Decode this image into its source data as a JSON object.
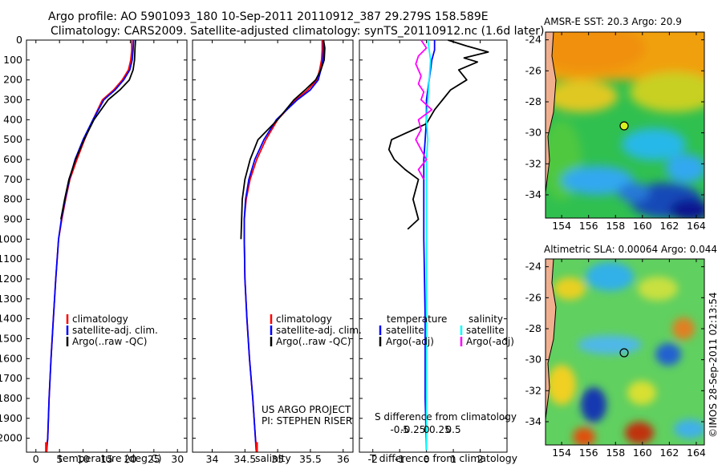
{
  "header": {
    "line1": "Argo profile: AO 5901093_180 10-Sep-2011 20110912_387 29.279S 158.589E",
    "line2": "Climatology: CARS2009. Satellite-adjusted climatology: synTS_20110912.nc (1.6d later)"
  },
  "depth_ticks": [
    "0",
    "100",
    "200",
    "300",
    "400",
    "500",
    "600",
    "700",
    "800",
    "900",
    "1000",
    "1100",
    "1200",
    "1300",
    "1400",
    "1500",
    "1600",
    "1700",
    "1800",
    "1900",
    "2000"
  ],
  "chart_data": [
    {
      "type": "line",
      "name": "temperature",
      "xlabel": "temperature (deg C)",
      "ylabel": "",
      "xlim": [
        -2,
        32
      ],
      "ylim": [
        2070,
        0
      ],
      "xticks": [
        "0",
        "5",
        "10",
        "15",
        "20",
        "25",
        "30"
      ],
      "series": [
        {
          "name": "climatology",
          "color": "#ff0000",
          "x": [
            20.3,
            20.3,
            20.1,
            19.6,
            18.3,
            16.5,
            14.1,
            12.1,
            10.3,
            8.7,
            7.2,
            6.3,
            5.5,
            4.8,
            4.2,
            3.7,
            3.2,
            2.8,
            2.5,
            2.2
          ],
          "y": [
            0,
            50,
            100,
            150,
            200,
            250,
            300,
            400,
            500,
            600,
            700,
            800,
            900,
            1000,
            1200,
            1400,
            1600,
            1800,
            2000,
            2060
          ]
        },
        {
          "name": "satellite-adj. clim.",
          "color": "#0000ff",
          "x": [
            20.7,
            20.6,
            20.4,
            19.9,
            18.6,
            16.8,
            14.4,
            12.1,
            10.0,
            8.3,
            7.1,
            6.2,
            5.4,
            4.8,
            4.2,
            3.7,
            3.2,
            2.8,
            2.5,
            2.3
          ],
          "y": [
            0,
            50,
            100,
            150,
            200,
            250,
            300,
            400,
            500,
            600,
            700,
            800,
            900,
            1000,
            1200,
            1400,
            1600,
            1800,
            2000,
            2060
          ]
        },
        {
          "name": "Argo(..raw -QC)",
          "color": "#000000",
          "x": [
            21.1,
            21.0,
            20.9,
            20.6,
            19.8,
            17.8,
            15.3,
            12.3,
            10.2,
            8.4,
            7.0,
            6.1,
            5.3
          ],
          "y": [
            0,
            40,
            100,
            150,
            200,
            250,
            300,
            400,
            500,
            600,
            700,
            800,
            900
          ]
        }
      ],
      "legend": [
        "climatology",
        "satellite-adj. clim.",
        "Argo(..raw -QC)"
      ]
    },
    {
      "type": "line",
      "name": "salinity",
      "xlabel": "salinity",
      "ylabel": "",
      "xlim": [
        33.7,
        36.15
      ],
      "ylim": [
        2070,
        0
      ],
      "xticks": [
        "34",
        "34.5",
        "35",
        "35.5",
        "36"
      ],
      "series": [
        {
          "name": "climatology",
          "color": "#ff0000",
          "x": [
            35.68,
            35.68,
            35.67,
            35.64,
            35.6,
            35.46,
            35.28,
            35.0,
            34.82,
            34.68,
            34.58,
            34.52,
            34.49,
            34.49,
            34.5,
            34.53,
            34.57,
            34.62,
            34.66,
            34.68
          ],
          "y": [
            0,
            50,
            100,
            150,
            200,
            250,
            300,
            400,
            500,
            600,
            700,
            800,
            900,
            1000,
            1200,
            1400,
            1600,
            1800,
            2000,
            2060
          ]
        },
        {
          "name": "satellite-adj. clim.",
          "color": "#0000ff",
          "x": [
            35.7,
            35.7,
            35.69,
            35.66,
            35.62,
            35.5,
            35.3,
            34.98,
            34.79,
            34.65,
            34.56,
            34.51,
            34.49,
            34.49,
            34.5,
            34.53,
            34.57,
            34.62,
            34.66,
            34.67
          ],
          "y": [
            0,
            50,
            100,
            150,
            200,
            250,
            300,
            400,
            500,
            600,
            700,
            800,
            900,
            1000,
            1200,
            1400,
            1600,
            1800,
            2000,
            2060
          ]
        },
        {
          "name": "Argo(..raw -QC)",
          "color": "#000000",
          "x": [
            35.7,
            35.72,
            35.71,
            35.66,
            35.58,
            35.42,
            35.25,
            35.0,
            34.7,
            34.58,
            34.5,
            34.46,
            34.45,
            34.44
          ],
          "y": [
            0,
            40,
            100,
            150,
            200,
            250,
            300,
            400,
            500,
            600,
            700,
            800,
            900,
            1000
          ]
        }
      ],
      "legend": [
        "climatology",
        "satellite-adj. clim.",
        "Argo(..raw -QC)"
      ],
      "annotation": [
        "US ARGO PROJECT",
        "PI: STEPHEN RISER"
      ]
    },
    {
      "type": "line",
      "name": "difference",
      "xlabel": "T difference from climatology",
      "xlabel_top": "S difference from climatology",
      "xlim": [
        -2.5,
        3
      ],
      "ylim": [
        2070,
        0
      ],
      "xticks": [
        "-2",
        "-1",
        "0",
        "1",
        "2"
      ],
      "s_ticks": [
        "-0.5",
        "-0.25",
        "0",
        "0.25",
        "0.5"
      ],
      "series": [
        {
          "name": "temperature satellite",
          "color": "#0000ff",
          "x": [
            0.3,
            0.3,
            0.2,
            0.1,
            0,
            0,
            -0.05,
            -0.1,
            -0.1,
            -0.1,
            -0.05,
            -0.05,
            0
          ],
          "y": [
            0,
            50,
            100,
            200,
            300,
            400,
            500,
            600,
            800,
            1000,
            1400,
            1800,
            2060
          ]
        },
        {
          "name": "temperature Argo(-adj)",
          "color": "#000000",
          "x": [
            0.8,
            1.5,
            2.3,
            1.4,
            1.9,
            1.2,
            1.5,
            0.9,
            0.6,
            0.3,
            0,
            -1.3,
            -1.4,
            -1.2,
            -0.8,
            -0.3,
            -0.5,
            -0.3,
            -0.7
          ],
          "y": [
            0,
            30,
            60,
            90,
            110,
            150,
            200,
            250,
            300,
            350,
            420,
            500,
            550,
            600,
            650,
            700,
            800,
            900,
            950
          ]
        },
        {
          "name": "salinity satellite",
          "color": "#00ffff",
          "x": [
            0.05,
            0.1,
            0.15,
            0.1,
            0.05,
            0.0,
            0.05,
            0.0,
            0.0,
            0.0,
            0.0,
            0.0
          ],
          "y": [
            0,
            50,
            100,
            200,
            300,
            400,
            500,
            600,
            800,
            1200,
            1600,
            2060
          ]
        },
        {
          "name": "salinity Argo(-adj)",
          "color": "#ff00ff",
          "x": [
            -0.2,
            0.0,
            -0.3,
            -0.4,
            -0.2,
            -0.3,
            -0.1,
            -0.2,
            0.2,
            -0.3,
            -0.2,
            -0.4,
            -0.2,
            0.0,
            -0.3,
            -0.1
          ],
          "y": [
            0,
            40,
            80,
            120,
            180,
            220,
            260,
            300,
            350,
            400,
            450,
            500,
            550,
            600,
            650,
            700
          ]
        }
      ],
      "legend_headers": [
        "temperature",
        "salinity"
      ],
      "legend": [
        "satellite",
        "Argo(-adj)",
        "satellite",
        "Argo(-adj)"
      ]
    }
  ],
  "maps": {
    "sst_title": "AMSR-E SST: 20.3 Argo: 20.9",
    "sla_title": "Altimetric SLA: 0.00064 Argo: 0.044",
    "lat_ticks": [
      "-24",
      "-26",
      "-28",
      "-30",
      "-32",
      "-34"
    ],
    "lon_ticks": [
      "154",
      "156",
      "158",
      "160",
      "162",
      "164"
    ],
    "float_marker": {
      "lon": 158.589,
      "lat": -29.279
    }
  },
  "watermark": "©IMOS 28-Sep-2011 02:13:54"
}
